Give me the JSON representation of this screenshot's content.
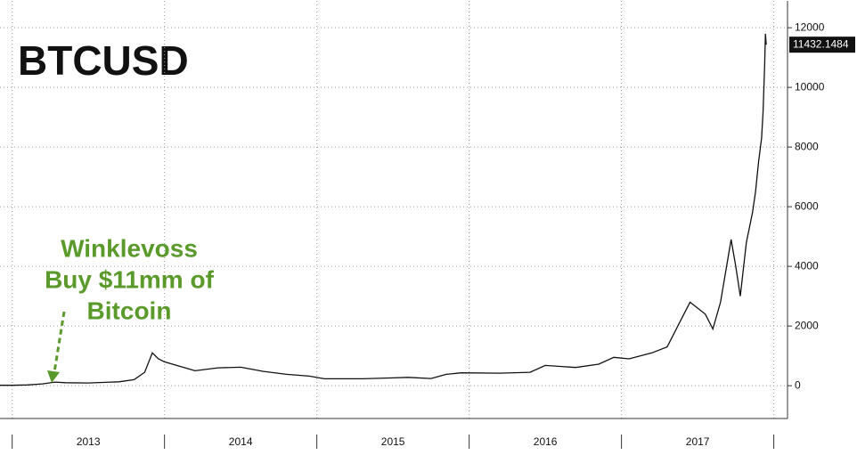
{
  "chart_data": {
    "type": "line",
    "title": "BTCUSD",
    "annotation": [
      "Winklevoss",
      "Buy $11mm of",
      "Bitcoin"
    ],
    "annotation_color": "#5a9a2a",
    "x": [
      2012.92,
      2013.0,
      2013.1,
      2013.2,
      2013.28,
      2013.35,
      2013.5,
      2013.7,
      2013.8,
      2013.87,
      2013.92,
      2013.96,
      2014.0,
      2014.1,
      2014.2,
      2014.35,
      2014.5,
      2014.65,
      2014.8,
      2014.95,
      2015.05,
      2015.3,
      2015.5,
      2015.6,
      2015.75,
      2015.85,
      2015.95,
      2016.2,
      2016.4,
      2016.5,
      2016.7,
      2016.85,
      2016.95,
      2017.05,
      2017.2,
      2017.3,
      2017.4,
      2017.45,
      2017.55,
      2017.6,
      2017.65,
      2017.7,
      2017.72,
      2017.75,
      2017.78,
      2017.82,
      2017.86,
      2017.88,
      2017.9,
      2017.92,
      2017.93,
      2017.94,
      2017.945,
      2017.95
    ],
    "series": [
      {
        "name": "BTCUSD",
        "color": "#111111",
        "values": [
          13,
          14,
          25,
          60,
          120,
          100,
          90,
          130,
          200,
          450,
          1100,
          900,
          800,
          650,
          500,
          600,
          620,
          480,
          380,
          320,
          230,
          230,
          260,
          280,
          240,
          380,
          430,
          420,
          450,
          680,
          610,
          720,
          950,
          900,
          1100,
          1300,
          2300,
          2800,
          2400,
          1900,
          2800,
          4300,
          4900,
          4000,
          3000,
          4800,
          5800,
          6500,
          7500,
          8300,
          9200,
          10800,
          11800,
          11432.1484
        ]
      }
    ],
    "xlim": [
      2012.92,
      2018.09
    ],
    "xticks": [
      {
        "value": 2013.5,
        "label": "2013"
      },
      {
        "value": 2014.5,
        "label": "2014"
      },
      {
        "value": 2015.5,
        "label": "2015"
      },
      {
        "value": 2016.5,
        "label": "2016"
      },
      {
        "value": 2017.5,
        "label": "2017"
      }
    ],
    "year_dividers": [
      2013,
      2014,
      2015,
      2016,
      2017,
      2018
    ],
    "ylim": [
      -1100,
      12900
    ],
    "yticks": [
      0,
      2000,
      4000,
      6000,
      8000,
      10000,
      12000
    ],
    "grid": true
  }
}
